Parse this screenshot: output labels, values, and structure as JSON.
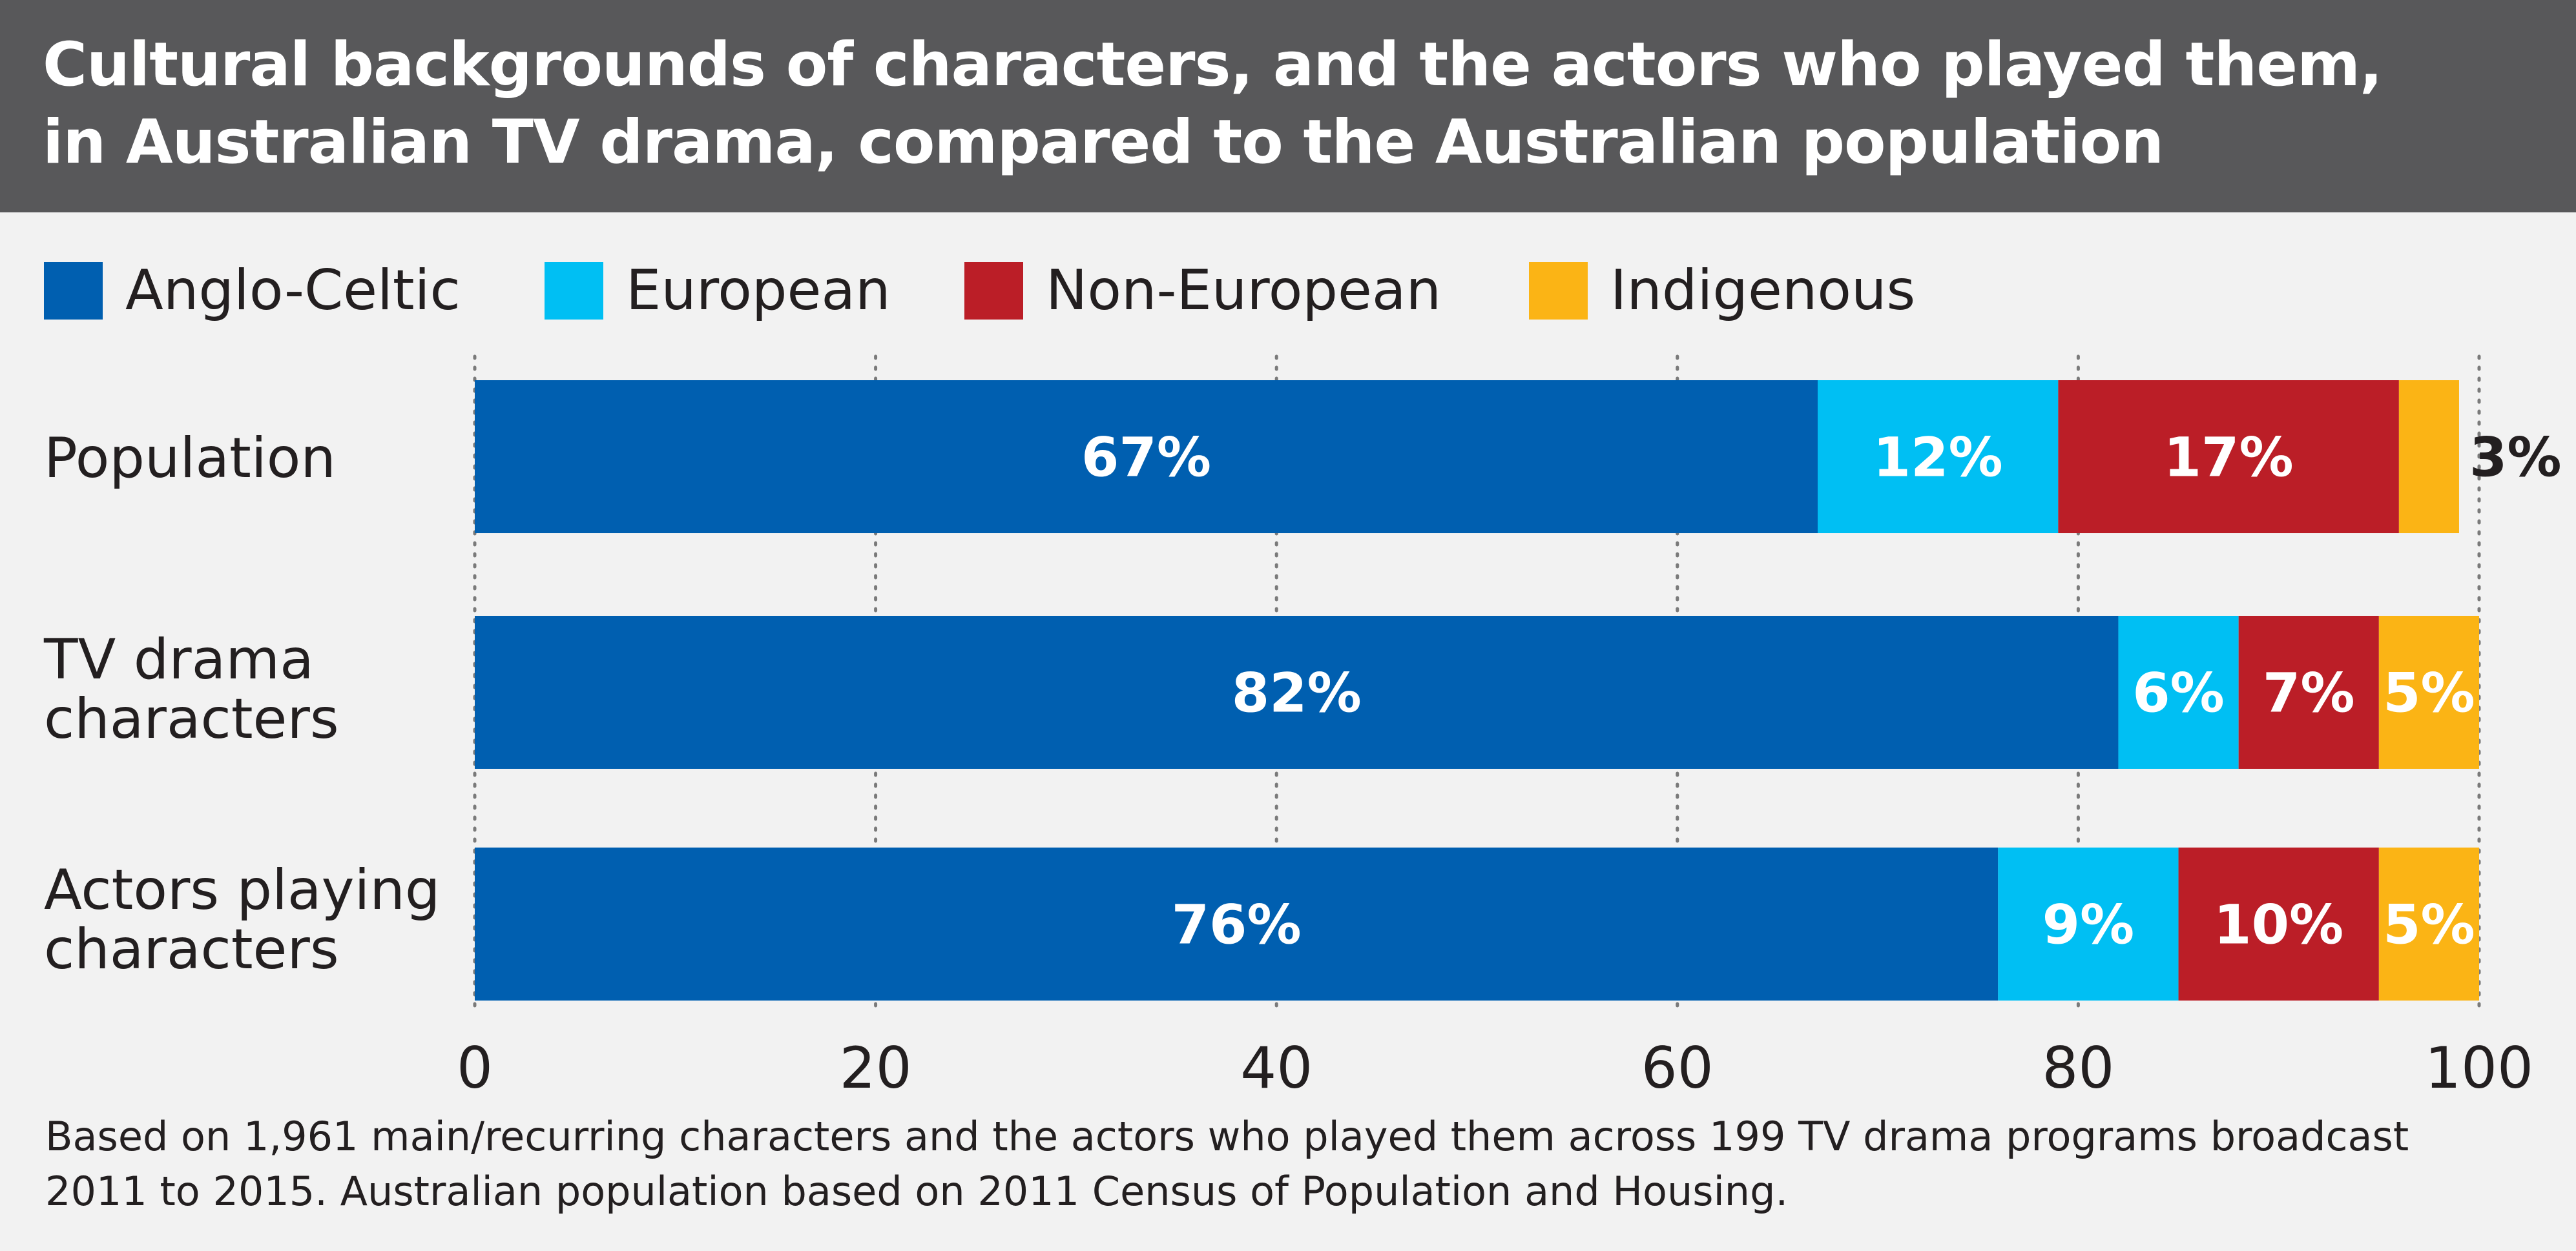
{
  "title": {
    "line1": "Cultural backgrounds of characters, and the actors who played them,",
    "line2": "in Australian TV drama, compared to the Australian population"
  },
  "legend": [
    {
      "label": "Anglo-Celtic",
      "color": "#005fb0"
    },
    {
      "label": "European",
      "color": "#00bff3"
    },
    {
      "label": "Non-European",
      "color": "#bb1e27"
    },
    {
      "label": "Indigenous",
      "color": "#fbb415"
    }
  ],
  "chart_data": {
    "type": "bar",
    "orientation": "horizontal",
    "stacked": true,
    "categories": [
      "Population",
      "TV drama characters",
      "Actors playing characters"
    ],
    "category_label_lines": [
      [
        "Population"
      ],
      [
        "TV drama",
        "characters"
      ],
      [
        "Actors playing",
        "characters"
      ]
    ],
    "series": [
      {
        "name": "Anglo-Celtic",
        "color": "#005fb0",
        "values": [
          67,
          82,
          76
        ],
        "labels": [
          "67%",
          "82%",
          "76%"
        ]
      },
      {
        "name": "European",
        "color": "#00bff3",
        "values": [
          12,
          6,
          9
        ],
        "labels": [
          "12%",
          "6%",
          "9%"
        ]
      },
      {
        "name": "Non-European",
        "color": "#bb1e27",
        "values": [
          17,
          7,
          10
        ],
        "labels": [
          "17%",
          "7%",
          "10%"
        ]
      },
      {
        "name": "Indigenous",
        "color": "#fbb415",
        "values": [
          3,
          5,
          5
        ],
        "labels": [
          "3%",
          "5%",
          "5%"
        ]
      }
    ],
    "xlim": [
      0,
      100
    ],
    "xticks": [
      "0",
      "20",
      "40",
      "60",
      "80",
      "100"
    ],
    "grid": true,
    "legend_position": "top-left"
  },
  "note": {
    "line1": "Based on 1,961 main/recurring characters and the actors who played them across 199 TV drama programs broadcast",
    "line2": "2011 to 2015. Australian population based on 2011 Census of Population and Housing."
  }
}
